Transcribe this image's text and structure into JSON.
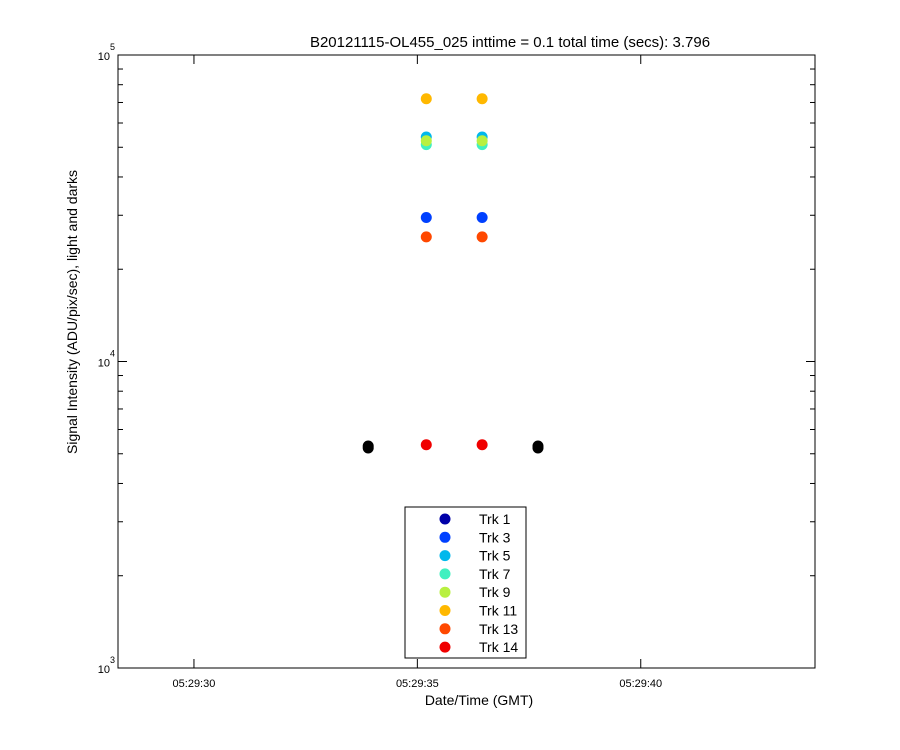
{
  "chart_data": {
    "type": "scatter",
    "title": "B20121115-OL455_025 inttime = 0.1 total time (secs): 3.796",
    "xlabel": "Date/Time (GMT)",
    "ylabel": "Signal Intensity (ADU/pix/sec), light and darks",
    "x_range_seconds": [
      28.3,
      43.9
    ],
    "x_ticks": [
      {
        "value": 30,
        "label": "05:29:30"
      },
      {
        "value": 35,
        "label": "05:29:35"
      },
      {
        "value": 40,
        "label": "05:29:40"
      }
    ],
    "y_scale": "log",
    "ylim": [
      1000,
      100000
    ],
    "y_ticks": [
      {
        "value": 1000,
        "base": "10",
        "exp": "3"
      },
      {
        "value": 10000,
        "base": "10",
        "exp": "4"
      },
      {
        "value": 100000,
        "base": "10",
        "exp": "5"
      }
    ],
    "grid": false,
    "legend_position": "bottom-center",
    "series": [
      {
        "name": "Trk 1",
        "color": "#0000a8",
        "x": [],
        "y": []
      },
      {
        "name": "Trk 3",
        "color": "#0040ff",
        "x": [
          35.2,
          36.45
        ],
        "y": [
          29500,
          29500
        ]
      },
      {
        "name": "Trk 5",
        "color": "#00b8ec",
        "x": [
          35.2,
          36.45
        ],
        "y": [
          54000,
          54000
        ]
      },
      {
        "name": "Trk 7",
        "color": "#40f0c0",
        "x": [
          35.2,
          36.45
        ],
        "y": [
          51000,
          51000
        ]
      },
      {
        "name": "Trk 9",
        "color": "#b8f040",
        "x": [
          35.2,
          36.45
        ],
        "y": [
          52500,
          52500
        ]
      },
      {
        "name": "Trk 11",
        "color": "#ffb800",
        "x": [
          35.2,
          36.45
        ],
        "y": [
          72000,
          72000
        ]
      },
      {
        "name": "Trk 13",
        "color": "#ff4800",
        "x": [
          35.2,
          36.45
        ],
        "y": [
          25500,
          25500
        ]
      },
      {
        "name": "Trk 14",
        "color": "#f00000",
        "x": [
          35.2,
          36.45
        ],
        "y": [
          5350,
          5350
        ]
      }
    ],
    "dark_points": {
      "color": "#000000",
      "x": [
        33.9,
        37.7
      ],
      "y": [
        5300,
        5300
      ]
    }
  }
}
